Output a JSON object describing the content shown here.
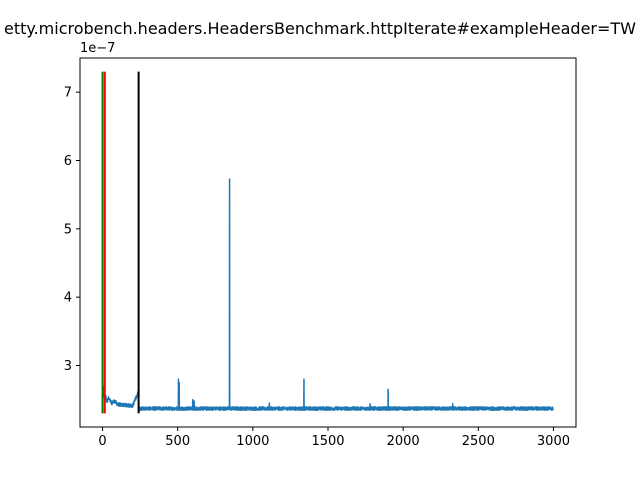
{
  "chart_data": {
    "type": "line",
    "title": "etty.microbench.headers.HeadersBenchmark.httpIterate#exampleHeader=TW",
    "y_offset_label": "1e−7",
    "y_scale": 1e-07,
    "xlim": [
      -150,
      3150
    ],
    "ylim": [
      2.1,
      7.5
    ],
    "x_ticks": [
      0,
      500,
      1000,
      1500,
      2000,
      2500,
      3000
    ],
    "y_ticks": [
      3,
      4,
      5,
      6,
      7
    ],
    "grid": false,
    "series": [
      {
        "color": "#1f77b4",
        "n_points": 3000,
        "baseline": 2.37,
        "noise": 0.025,
        "warmup": [
          [
            0,
            2.75
          ],
          [
            5,
            2.55
          ],
          [
            10,
            2.7
          ],
          [
            15,
            2.5
          ],
          [
            20,
            2.55
          ],
          [
            30,
            2.48
          ],
          [
            40,
            2.52
          ],
          [
            60,
            2.45
          ],
          [
            80,
            2.48
          ],
          [
            100,
            2.43
          ],
          [
            150,
            2.42
          ],
          [
            200,
            2.41
          ],
          [
            240,
            2.62
          ]
        ],
        "spikes": [
          [
            240,
            2.62
          ],
          [
            505,
            2.8
          ],
          [
            510,
            2.75
          ],
          [
            600,
            2.5
          ],
          [
            610,
            2.48
          ],
          [
            845,
            5.73
          ],
          [
            1110,
            2.45
          ],
          [
            1340,
            2.8
          ],
          [
            1780,
            2.44
          ],
          [
            1900,
            2.65
          ],
          [
            2330,
            2.44
          ]
        ]
      }
    ],
    "vertical_lines": [
      {
        "x": 0,
        "y_min": 2.3,
        "y_max": 7.3,
        "color": "#008000"
      },
      {
        "x": 15,
        "y_min": 2.3,
        "y_max": 7.3,
        "color": "#ff0000"
      },
      {
        "x": 240,
        "y_min": 2.3,
        "y_max": 7.3,
        "color": "#000000"
      }
    ]
  }
}
